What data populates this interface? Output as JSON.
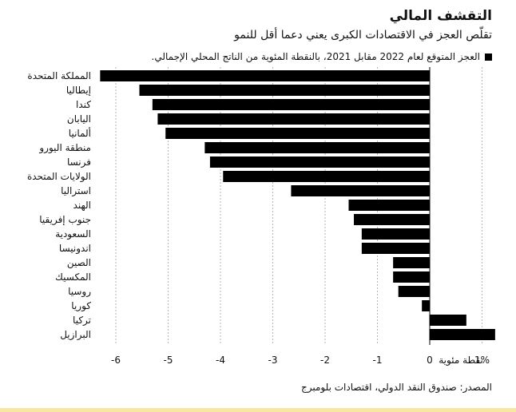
{
  "header": {
    "title": "التقشف المالي",
    "subtitle": "تقلّص العجز في الاقتصادات الكبرى يعني دعما أقل للنمو"
  },
  "legend": {
    "label": "العجز المتوقع لعام 2022 مقابل 2021، بالنقطة المئوية من الناتج المحلي الإجمالي."
  },
  "source": "المصدر: صندوق النقد الدولي، اقتصادات بلومبرج",
  "colors": {
    "bar": "#000000",
    "footer_bar": "#f7e7a0"
  },
  "chart_data": {
    "type": "bar",
    "orientation": "horizontal",
    "categories": [
      "المملكة المتحدة",
      "إيطاليا",
      "كندا",
      "اليابان",
      "ألمانيا",
      "منطقة اليورو",
      "فرنسا",
      "الولايات المتحدة",
      "استراليا",
      "الهند",
      "جنوب إفريقيا",
      "السعودية",
      "اندونيسا",
      "الصين",
      "المكسيك",
      "روسيا",
      "كوريا",
      "تركيا",
      "البرازيل"
    ],
    "values": [
      -6.3,
      -5.55,
      -5.3,
      -5.2,
      -5.05,
      -4.3,
      -4.2,
      -3.95,
      -2.65,
      -1.55,
      -1.45,
      -1.3,
      -1.3,
      -0.7,
      -0.7,
      -0.6,
      -0.15,
      0.7,
      1.25
    ],
    "xlim": [
      -6.3,
      1.3
    ],
    "ticks": [
      -6,
      -5,
      -4,
      -3,
      -2,
      -1,
      0,
      1
    ],
    "tick_labels": [
      "-6",
      "-5",
      "-4",
      "-3",
      "-2",
      "-1",
      "0",
      "1%"
    ],
    "axis_unit_label": "نقطة مئوية",
    "grid": true
  }
}
